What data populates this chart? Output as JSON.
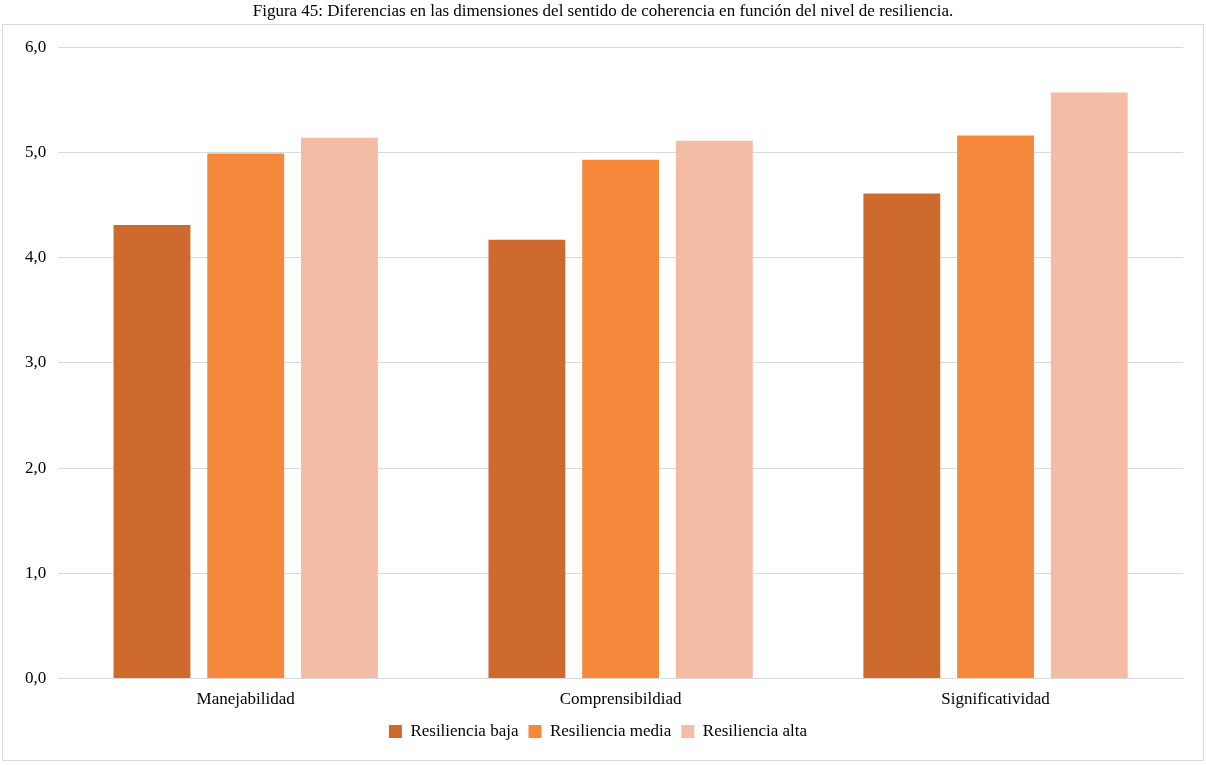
{
  "chart_data": {
    "type": "bar",
    "title": "Figura 45: Diferencias en las dimensiones del sentido de coherencia en función del nivel de resiliencia.",
    "categories": [
      "Manejabilidad",
      "Comprensibildiad",
      "Significatividad"
    ],
    "series": [
      {
        "name": "Resiliencia baja",
        "color": "#cf6a2e",
        "values": [
          4.31,
          4.17,
          4.61
        ]
      },
      {
        "name": "Resiliencia media",
        "color": "#f5883a",
        "values": [
          4.99,
          4.93,
          5.16
        ]
      },
      {
        "name": "Resiliencia alta",
        "color": "#f4bca4",
        "values": [
          5.14,
          5.11,
          5.57
        ]
      }
    ],
    "ylim": [
      0,
      6
    ],
    "yticks": [
      {
        "value": 0,
        "label": "0,0"
      },
      {
        "value": 1,
        "label": "1,0"
      },
      {
        "value": 2,
        "label": "2,0"
      },
      {
        "value": 3,
        "label": "3,0"
      },
      {
        "value": 4,
        "label": "4,0"
      },
      {
        "value": 5,
        "label": "5,0"
      },
      {
        "value": 6,
        "label": "6,0"
      }
    ],
    "grid": "y",
    "legend": "bottom"
  }
}
